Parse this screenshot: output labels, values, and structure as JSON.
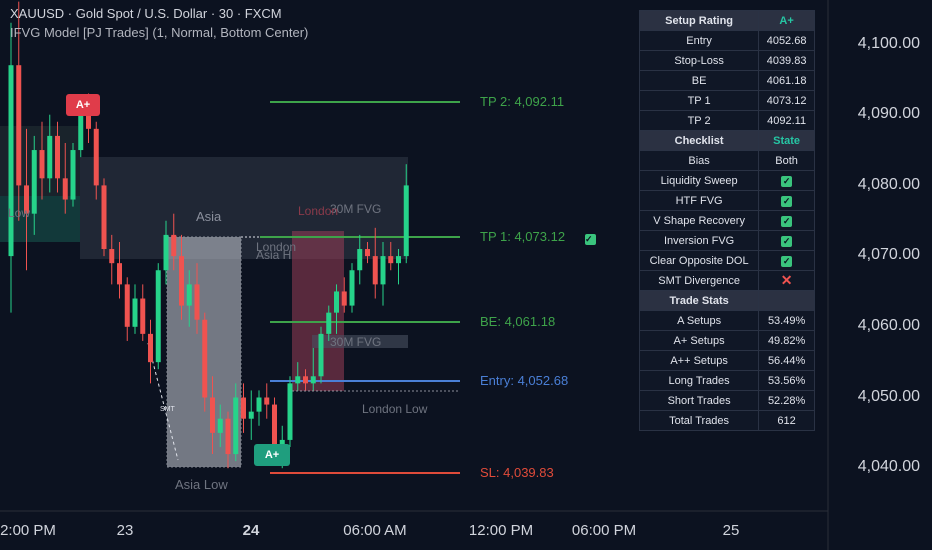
{
  "header": {
    "symbol_line": "XAUUSD · Gold Spot / U.S. Dollar · 30 · FXCM",
    "indicator_line": "IFVG Model [PJ Trades] (1, Normal, Bottom Center)"
  },
  "price_axis": [
    "4,100.00",
    "4,090.00",
    "4,080.00",
    "4,070.00",
    "4,060.00",
    "4,050.00",
    "4,040.00"
  ],
  "time_axis": [
    "2:00 PM",
    "23",
    "24",
    "06:00 AM",
    "12:00 PM",
    "06:00 PM",
    "25"
  ],
  "levels": {
    "tp2": "TP 2: 4,092.11",
    "tp1": "TP 1: 4,073.12",
    "be": "BE: 4,061.18",
    "entry": "Entry: 4,052.68",
    "sl": "SL: 4,039.83"
  },
  "zone_labels": {
    "asia": "Asia",
    "asia_low": "Asia Low",
    "london_low": "London Low",
    "fvg_30m_top": "30M FVG",
    "fvg_30m_bottom": "30M FVG",
    "london": "London",
    "asia_h": "Asia H",
    "london_h": "London",
    "low_left": "Low",
    "smt": "SMT"
  },
  "badges": {
    "top": "A+",
    "bottom": "A+"
  },
  "panel": {
    "setup_rating_label": "Setup Rating",
    "setup_rating_value": "A+",
    "rows": [
      {
        "k": "Entry",
        "v": "4052.68"
      },
      {
        "k": "Stop-Loss",
        "v": "4039.83"
      },
      {
        "k": "BE",
        "v": "4061.18"
      },
      {
        "k": "TP 1",
        "v": "4073.12"
      },
      {
        "k": "TP 2",
        "v": "4092.11"
      }
    ],
    "checklist_label": "Checklist",
    "state_label": "State",
    "checklist": [
      {
        "k": "Bias",
        "v": "Both",
        "type": "text"
      },
      {
        "k": "Liquidity Sweep",
        "v": "",
        "type": "check"
      },
      {
        "k": "HTF FVG",
        "v": "",
        "type": "check"
      },
      {
        "k": "V Shape Recovery",
        "v": "",
        "type": "check"
      },
      {
        "k": "Inversion FVG",
        "v": "",
        "type": "check"
      },
      {
        "k": "Clear Opposite DOL",
        "v": "",
        "type": "check"
      },
      {
        "k": "SMT Divergence",
        "v": "",
        "type": "cross"
      }
    ],
    "stats_label": "Trade Stats",
    "stats": [
      {
        "k": "A Setups",
        "v": "53.49%"
      },
      {
        "k": "A+ Setups",
        "v": "49.82%"
      },
      {
        "k": "A++ Setups",
        "v": "56.44%"
      },
      {
        "k": "Long Trades",
        "v": "53.56%"
      },
      {
        "k": "Short Trades",
        "v": "52.28%"
      },
      {
        "k": "Total Trades",
        "v": "612"
      }
    ]
  },
  "colors": {
    "bull": "#26d38a",
    "bear": "#ef5350",
    "tp": "#3ea34a",
    "entry": "#4a7fd6",
    "sl": "#e04b3a",
    "background": "#0c1220"
  },
  "candles": [
    {
      "o": 4070,
      "h": 4103,
      "l": 4062,
      "c": 4097
    },
    {
      "o": 4097,
      "h": 4106,
      "l": 4075,
      "c": 4080
    },
    {
      "o": 4080,
      "h": 4088,
      "l": 4068,
      "c": 4076
    },
    {
      "o": 4076,
      "h": 4087,
      "l": 4073,
      "c": 4085
    },
    {
      "o": 4085,
      "h": 4089,
      "l": 4078,
      "c": 4081
    },
    {
      "o": 4081,
      "h": 4090,
      "l": 4079,
      "c": 4087
    },
    {
      "o": 4087,
      "h": 4089,
      "l": 4079,
      "c": 4081
    },
    {
      "o": 4081,
      "h": 4086,
      "l": 4076,
      "c": 4078
    },
    {
      "o": 4078,
      "h": 4086,
      "l": 4077,
      "c": 4085
    },
    {
      "o": 4085,
      "h": 4092,
      "l": 4084,
      "c": 4091
    },
    {
      "o": 4091,
      "h": 4093,
      "l": 4086,
      "c": 4088
    },
    {
      "o": 4088,
      "h": 4089,
      "l": 4078,
      "c": 4080
    },
    {
      "o": 4080,
      "h": 4081,
      "l": 4070,
      "c": 4071
    },
    {
      "o": 4071,
      "h": 4073,
      "l": 4066,
      "c": 4069
    },
    {
      "o": 4069,
      "h": 4072,
      "l": 4064,
      "c": 4066
    },
    {
      "o": 4066,
      "h": 4067,
      "l": 4058,
      "c": 4060
    },
    {
      "o": 4060,
      "h": 4066,
      "l": 4059,
      "c": 4064
    },
    {
      "o": 4064,
      "h": 4066,
      "l": 4058,
      "c": 4059
    },
    {
      "o": 4059,
      "h": 4061,
      "l": 4052,
      "c": 4055
    },
    {
      "o": 4055,
      "h": 4069,
      "l": 4054,
      "c": 4068
    },
    {
      "o": 4068,
      "h": 4075,
      "l": 4066,
      "c": 4073
    },
    {
      "o": 4073,
      "h": 4076,
      "l": 4068,
      "c": 4070
    },
    {
      "o": 4070,
      "h": 4073,
      "l": 4061,
      "c": 4063
    },
    {
      "o": 4063,
      "h": 4068,
      "l": 4060,
      "c": 4066
    },
    {
      "o": 4066,
      "h": 4069,
      "l": 4059,
      "c": 4061
    },
    {
      "o": 4061,
      "h": 4062,
      "l": 4048,
      "c": 4050
    },
    {
      "o": 4050,
      "h": 4053,
      "l": 4042,
      "c": 4045
    },
    {
      "o": 4045,
      "h": 4049,
      "l": 4043,
      "c": 4047
    },
    {
      "o": 4047,
      "h": 4048,
      "l": 4040,
      "c": 4042
    },
    {
      "o": 4042,
      "h": 4052,
      "l": 4041,
      "c": 4050
    },
    {
      "o": 4050,
      "h": 4052,
      "l": 4045,
      "c": 4047
    },
    {
      "o": 4047,
      "h": 4051,
      "l": 4044,
      "c": 4048
    },
    {
      "o": 4048,
      "h": 4051,
      "l": 4046,
      "c": 4050
    },
    {
      "o": 4050,
      "h": 4052,
      "l": 4047,
      "c": 4049
    },
    {
      "o": 4049,
      "h": 4050,
      "l": 4041,
      "c": 4042
    },
    {
      "o": 4042,
      "h": 4046,
      "l": 4040,
      "c": 4044
    },
    {
      "o": 4044,
      "h": 4053,
      "l": 4043,
      "c": 4052
    },
    {
      "o": 4052,
      "h": 4055,
      "l": 4051,
      "c": 4053
    },
    {
      "o": 4053,
      "h": 4054,
      "l": 4051,
      "c": 4052
    },
    {
      "o": 4052,
      "h": 4057,
      "l": 4051,
      "c": 4053
    },
    {
      "o": 4053,
      "h": 4060,
      "l": 4052,
      "c": 4059
    },
    {
      "o": 4059,
      "h": 4063,
      "l": 4058,
      "c": 4062
    },
    {
      "o": 4062,
      "h": 4066,
      "l": 4059,
      "c": 4065
    },
    {
      "o": 4065,
      "h": 4067,
      "l": 4062,
      "c": 4063
    },
    {
      "o": 4063,
      "h": 4069,
      "l": 4062,
      "c": 4068
    },
    {
      "o": 4068,
      "h": 4073,
      "l": 4066,
      "c": 4071
    },
    {
      "o": 4071,
      "h": 4072,
      "l": 4069,
      "c": 4070
    },
    {
      "o": 4070,
      "h": 4074,
      "l": 4064,
      "c": 4066
    },
    {
      "o": 4066,
      "h": 4072,
      "l": 4063,
      "c": 4070
    },
    {
      "o": 4070,
      "h": 4072,
      "l": 4068,
      "c": 4069
    },
    {
      "o": 4069,
      "h": 4071,
      "l": 4066,
      "c": 4070
    },
    {
      "o": 4070,
      "h": 4083,
      "l": 4069,
      "c": 4080
    }
  ]
}
